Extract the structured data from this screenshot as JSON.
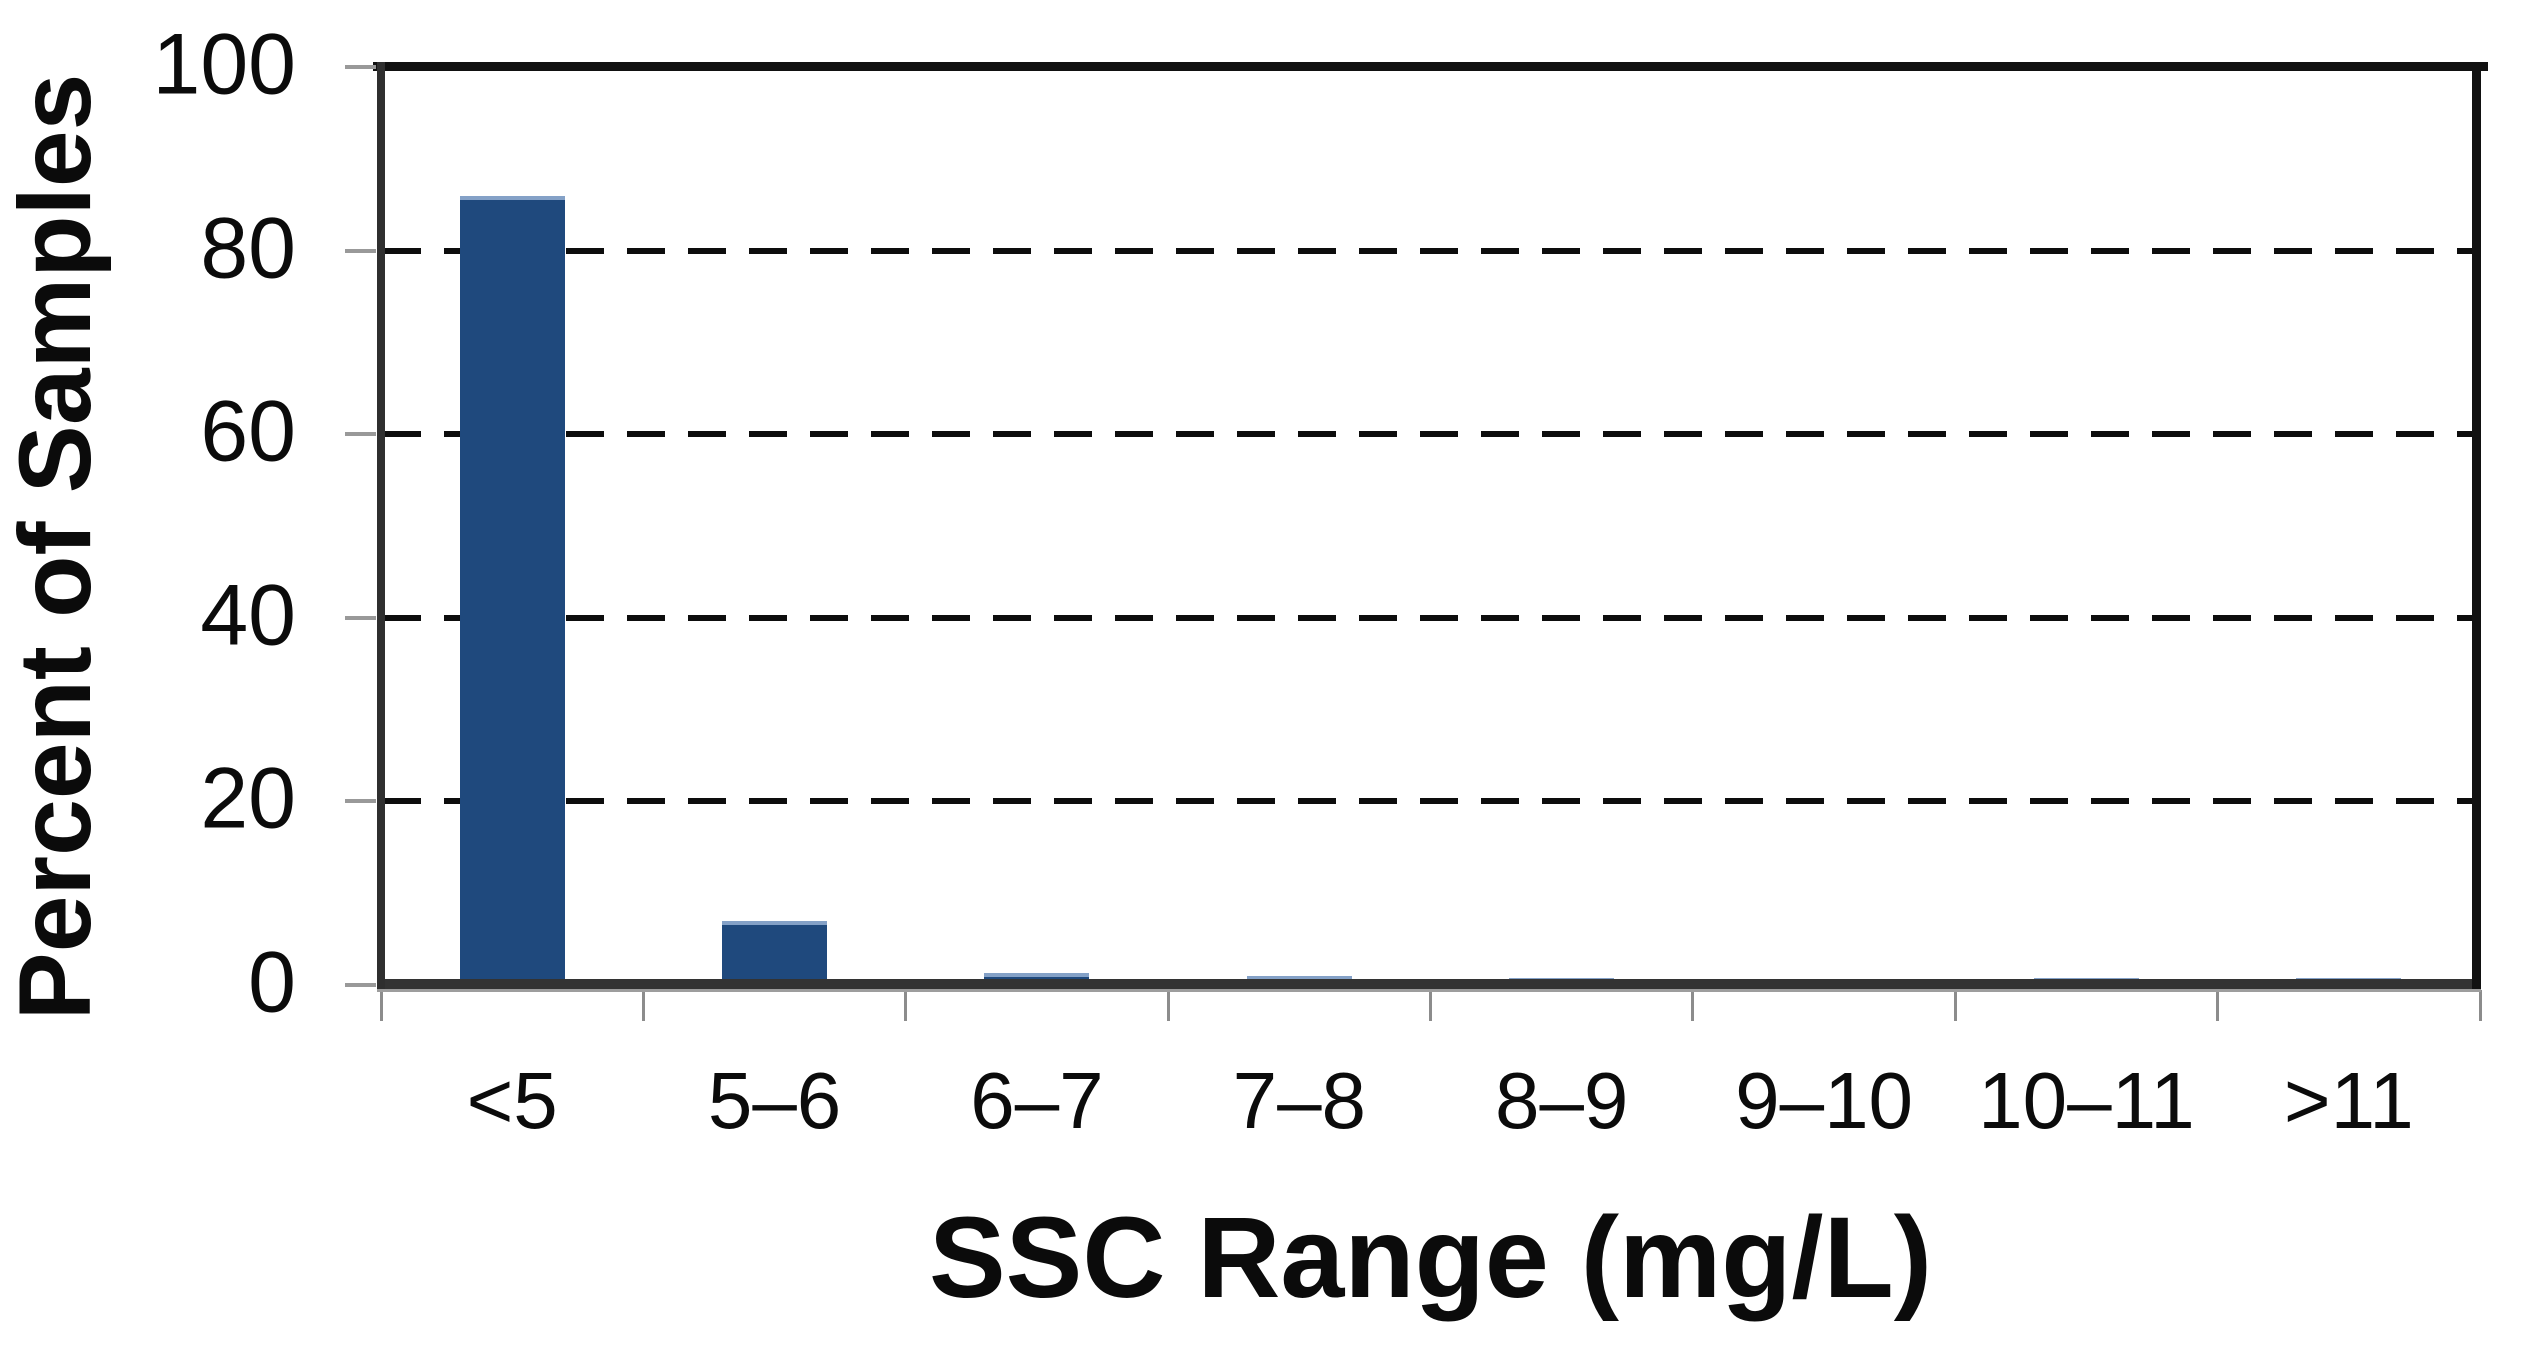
{
  "chart_data": {
    "type": "bar",
    "title": "",
    "categories": [
      "<5",
      "5–6",
      "6–7",
      "7–8",
      "8–9",
      "9–10",
      "10–11",
      ">11"
    ],
    "values": [
      86,
      7,
      1.3,
      1.0,
      0.8,
      0.5,
      0.8,
      0.8
    ],
    "xlabel": "SSC Range (mg/L)",
    "ylabel": "Percent of Samples",
    "ylim": [
      0,
      100
    ],
    "yticks": [
      0,
      20,
      40,
      60,
      80,
      100
    ],
    "gridlines_at": [
      20,
      40,
      60,
      80
    ],
    "grid_style": "dashed-horizontal",
    "legend_position": "none",
    "bar_color": "#1F497D",
    "bar_top_edge_color": "#84A1C7",
    "axis_color": "#333333",
    "frame_color": "#111111",
    "tick_color": "#999999",
    "background_color": "#FFFFFF"
  }
}
